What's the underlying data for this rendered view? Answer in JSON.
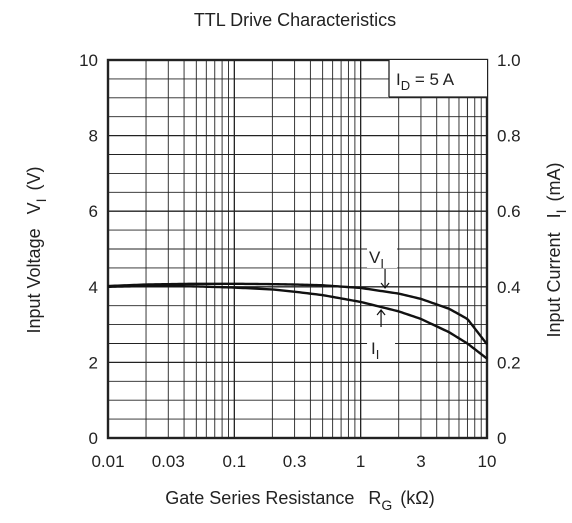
{
  "chart_data": {
    "type": "line",
    "title": "TTL Drive Characteristics",
    "xlabel": "Gate Series Resistance",
    "xlabel_symbol": "R",
    "xlabel_symbol_sub": "G",
    "xlabel_unit": "(kΩ)",
    "xscale": "log",
    "xlim": [
      0.01,
      10
    ],
    "xticks": [
      "0.01",
      "0.03",
      "0.1",
      "0.3",
      "1",
      "3",
      "10"
    ],
    "xtick_values": [
      0.01,
      0.03,
      0.1,
      0.3,
      1,
      3,
      10
    ],
    "ylabel_left": "Input Voltage",
    "ylabel_left_symbol": "V",
    "ylabel_left_sub": "I",
    "ylabel_left_unit": "(V)",
    "ylim_left": [
      0,
      10
    ],
    "yticks_left": [
      "0",
      "2",
      "4",
      "6",
      "8",
      "10"
    ],
    "ylabel_right": "Input Current",
    "ylabel_right_symbol": "I",
    "ylabel_right_sub": "I",
    "ylabel_right_unit": "(mA)",
    "ylim_right": [
      0,
      1.0
    ],
    "yticks_right": [
      "0",
      "0.2",
      "0.4",
      "0.6",
      "0.8",
      "1.0"
    ],
    "grid": true,
    "annotation": {
      "symbol": "I",
      "sub": "D",
      "rest": " = 5 A"
    },
    "series": [
      {
        "name": "V",
        "name_sub": "I",
        "axis": "left",
        "x": [
          0.01,
          0.02,
          0.03,
          0.05,
          0.1,
          0.2,
          0.3,
          0.5,
          1,
          2,
          3,
          5,
          7,
          10
        ],
        "y": [
          4.02,
          4.06,
          4.07,
          4.08,
          4.08,
          4.07,
          4.06,
          4.04,
          3.97,
          3.82,
          3.68,
          3.42,
          3.15,
          2.48
        ]
      },
      {
        "name": "I",
        "name_sub": "I",
        "axis": "right",
        "x": [
          0.01,
          0.02,
          0.03,
          0.05,
          0.1,
          0.2,
          0.3,
          0.5,
          1,
          2,
          3,
          5,
          7,
          10
        ],
        "y": [
          0.4,
          0.402,
          0.402,
          0.401,
          0.398,
          0.393,
          0.387,
          0.378,
          0.36,
          0.335,
          0.315,
          0.28,
          0.25,
          0.21
        ]
      }
    ]
  }
}
